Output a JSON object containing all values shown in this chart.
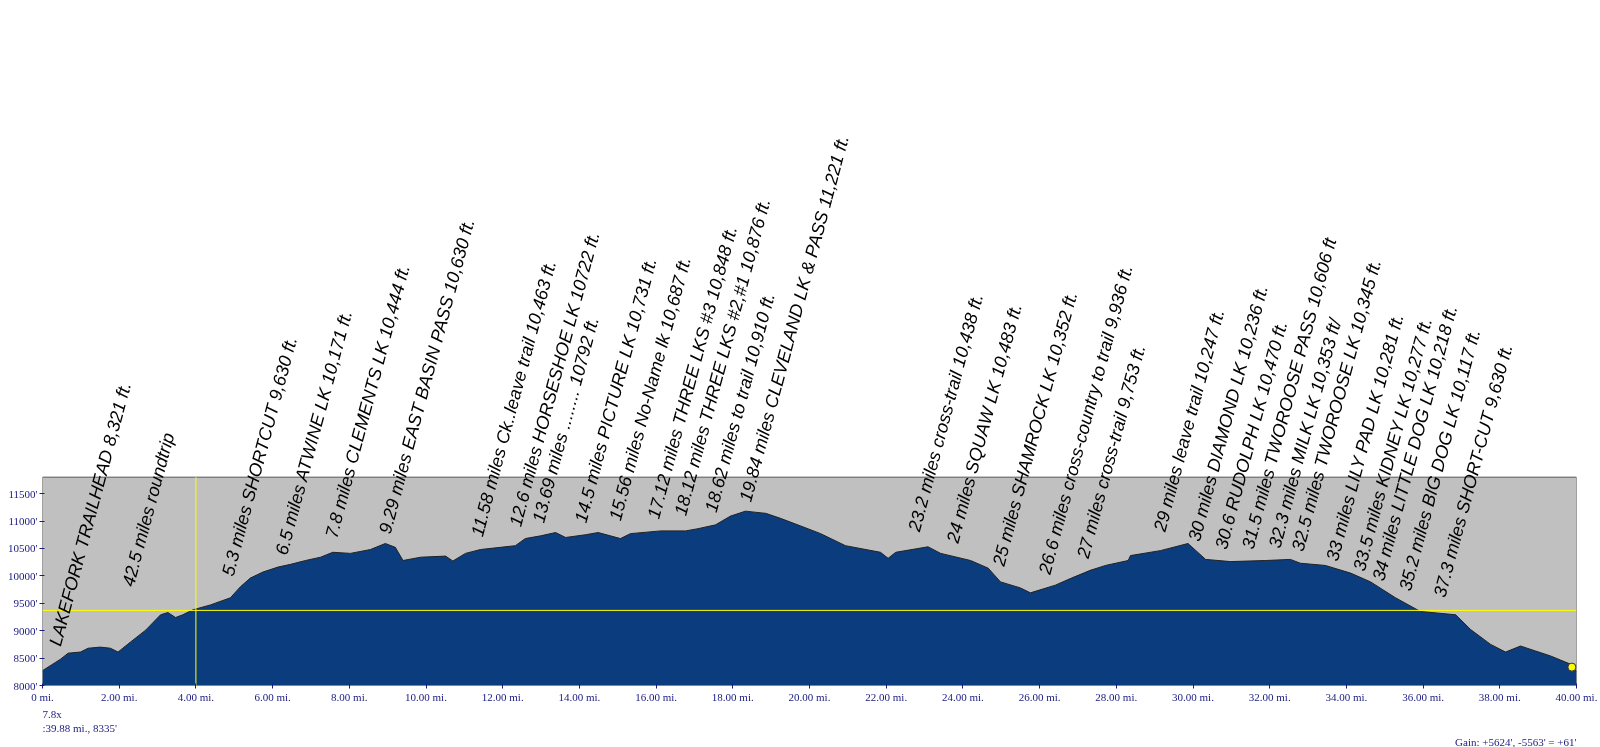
{
  "chart_data": {
    "type": "area",
    "xlim": [
      0,
      40
    ],
    "ylim": [
      8000,
      11800
    ],
    "xticks": [
      {
        "value": 0,
        "label": "0 mi."
      },
      {
        "value": 2,
        "label": "2.00 mi."
      },
      {
        "value": 4,
        "label": "4.00 mi."
      },
      {
        "value": 6,
        "label": "6.00 mi."
      },
      {
        "value": 8,
        "label": "8.00 mi."
      },
      {
        "value": 10,
        "label": "10.00 mi."
      },
      {
        "value": 12,
        "label": "12.00 mi."
      },
      {
        "value": 14,
        "label": "14.00 mi."
      },
      {
        "value": 16,
        "label": "16.00 mi."
      },
      {
        "value": 18,
        "label": "18.00 mi."
      },
      {
        "value": 20,
        "label": "20.00 mi."
      },
      {
        "value": 22,
        "label": "22.00 mi."
      },
      {
        "value": 24,
        "label": "24.00 mi."
      },
      {
        "value": 26,
        "label": "26.00 mi."
      },
      {
        "value": 28,
        "label": "28.00 mi."
      },
      {
        "value": 30,
        "label": "30.00 mi."
      },
      {
        "value": 32,
        "label": "32.00 mi."
      },
      {
        "value": 34,
        "label": "34.00 mi."
      },
      {
        "value": 36,
        "label": "36.00 mi."
      },
      {
        "value": 38,
        "label": "38.00 mi."
      },
      {
        "value": 40,
        "label": "40.00 mi."
      }
    ],
    "yticks": [
      {
        "value": 8000,
        "label": "8000'"
      },
      {
        "value": 8500,
        "label": "8500'"
      },
      {
        "value": 9000,
        "label": "9000'"
      },
      {
        "value": 9500,
        "label": "9500'"
      },
      {
        "value": 10000,
        "label": "10000'"
      },
      {
        "value": 10500,
        "label": "10500'"
      },
      {
        "value": 11000,
        "label": "11000'"
      },
      {
        "value": 11500,
        "label": "11500'"
      }
    ],
    "grid": false,
    "series": [
      {
        "color": "#0b3d7e",
        "x": [
          0,
          0.47,
          0.67,
          0.99,
          1.19,
          1.51,
          1.77,
          1.97,
          2.29,
          2.69,
          3.08,
          3.27,
          3.47,
          3.66,
          3.92,
          4.38,
          4.9,
          5.16,
          5.42,
          5.75,
          6.14,
          6.47,
          6.86,
          7.25,
          7.57,
          8.03,
          8.55,
          8.94,
          9.2,
          9.4,
          9.86,
          10.51,
          10.7,
          11.03,
          11.42,
          11.94,
          12.33,
          12.59,
          12.99,
          13.38,
          13.64,
          14.16,
          14.49,
          15.07,
          15.33,
          16.12,
          16.77,
          17.09,
          17.55,
          17.94,
          18.33,
          18.86,
          19.24,
          19.77,
          20.29,
          20.94,
          21.85,
          22.05,
          22.25,
          23.09,
          23.42,
          24.2,
          24.66,
          24.98,
          25.5,
          25.76,
          26.41,
          26.8,
          27.32,
          27.72,
          28.31,
          28.37,
          29.15,
          29.87,
          30.33,
          30.98,
          31.89,
          32.54,
          32.8,
          33.45,
          34.11,
          34.63,
          35.28,
          35.93,
          36.85,
          37.24,
          37.76,
          38.15,
          38.54,
          38.93,
          39.32,
          39.84,
          40.0
        ],
        "values": [
          8270,
          8480,
          8590,
          8610,
          8680,
          8700,
          8680,
          8610,
          8790,
          9010,
          9290,
          9330,
          9240,
          9290,
          9380,
          9470,
          9600,
          9800,
          9960,
          10070,
          10160,
          10210,
          10280,
          10340,
          10430,
          10410,
          10480,
          10590,
          10520,
          10280,
          10340,
          10360,
          10270,
          10410,
          10480,
          10520,
          10550,
          10680,
          10730,
          10790,
          10700,
          10750,
          10790,
          10680,
          10770,
          10820,
          10820,
          10860,
          10930,
          11090,
          11180,
          11140,
          11050,
          10910,
          10770,
          10550,
          10430,
          10320,
          10430,
          10530,
          10410,
          10280,
          10140,
          9890,
          9780,
          9690,
          9830,
          9950,
          10100,
          10190,
          10280,
          10370,
          10460,
          10590,
          10300,
          10260,
          10280,
          10300,
          10230,
          10190,
          10050,
          9890,
          9600,
          9350,
          9290,
          9020,
          8750,
          8610,
          8720,
          8630,
          8540,
          8390,
          8250
        ]
      },
      {
        "type": "scatter",
        "color": "#ffff00",
        "marker": "circle",
        "x": [
          39.88
        ],
        "values": [
          8335
        ]
      }
    ],
    "ref_lines": [
      {
        "axis": "x",
        "value": 4.0,
        "color": "#ffff00"
      },
      {
        "axis": "y",
        "value": 9370,
        "color": "#ffff00"
      }
    ],
    "annotations": [
      {
        "text": "LAKEFORK TRAILHEAD  8,321 ft.",
        "x": 0.5,
        "y": 8500
      },
      "42.5 miles roundtrip",
      {
        "text": "5.3 miles SHORTCUT  9,630 ft.",
        "x": 5.0,
        "y": 9780
      },
      {
        "text": "6.5 miles ATWINE LK  10,171 ft.",
        "x": 6.4,
        "y": 10160
      },
      {
        "text": "7.8 miles CLEMENTS LK  10,444 ft.",
        "x": 7.7,
        "y": 10470
      },
      {
        "text": "9.29 miles EAST BASIN PASS  10,630 ft.",
        "x": 9.1,
        "y": 10550
      },
      {
        "text": "11.58 miles Ck..leave trail  10,463 ft.",
        "x": 11.5,
        "y": 10500
      },
      {
        "text": "12.6 miles HORSESHOE LK  10722 ft.",
        "x": 12.5,
        "y": 10680
      },
      {
        "text": "13.69 miles  ........  10792 ft.",
        "x": 13.1,
        "y": 10750
      },
      {
        "text": "14.5 miles PICTURE LK 10,731 ft.",
        "x": 14.2,
        "y": 10750
      },
      {
        "text": "15.56 miles  No-Name lk  10,687 ft.",
        "x": 15.1,
        "y": 10790
      },
      {
        "text": "17.12 miles  THREE LKS #3  10,848 ft.",
        "x": 16.1,
        "y": 10820
      },
      {
        "text": "18.12 miles THREE LKS #2,#1 10,876 ft.",
        "x": 16.8,
        "y": 10880
      },
      {
        "text": "18.62 miles to trail  10,910 ft.",
        "x": 17.6,
        "y": 10940
      },
      {
        "text": "19.84 miles CLEVELAND LK & PASS  11,221 ft.",
        "x": 18.5,
        "y": 11130
      },
      {
        "text": "23.2 miles cross-trail  10,438 ft.",
        "x": 22.9,
        "y": 10590
      },
      {
        "text": "24 miles SQUAW LK 10,483 ft.",
        "x": 23.9,
        "y": 10380
      },
      {
        "text": "25 miles SHAMROCK LK  10,352 ft.",
        "x": 25.1,
        "y": 9960
      },
      {
        "text": "26.6 miles  cross-country to trail  9,936 ft.",
        "x": 26.3,
        "y": 9810
      },
      {
        "text": "27 miles  cross-trail  9,753 ft.",
        "x": 27.3,
        "y": 10100
      },
      {
        "text": "29 miles  leave trail  10,247 ft.",
        "x": 29.3,
        "y": 10590
      },
      {
        "text": "30 miles DIAMOND LK  10,236 ft.",
        "x": 30.2,
        "y": 10410
      },
      {
        "text": "30.6 RUDOLPH LK  10,470 ft.",
        "x": 30.9,
        "y": 10265
      },
      {
        "text": "31.5 miles TWOROOSE PASS  10,606 ft",
        "x": 31.6,
        "y": 10270
      },
      {
        "text": "32.3 miles  MILK LK  10,353 ft/",
        "x": 32.3,
        "y": 10290
      },
      {
        "text": "32.5 miles TWOROOSE LK  10,345 ft.",
        "x": 32.9,
        "y": 10230
      },
      {
        "text": "33 miles LILY PAD LK  10,281 ft.",
        "x": 33.8,
        "y": 10050
      },
      {
        "text": "33.5 miles KIDNEY LK  10,277 ft.",
        "x": 34.5,
        "y": 9870
      },
      {
        "text": "34 miles LITTLE DOG LK  10,218 ft.",
        "x": 35.0,
        "y": 9690
      },
      {
        "text": "35.2 miles BIG DOG LK  10,117 ft.",
        "x": 35.7,
        "y": 9510
      },
      {
        "text": "37.3 miles   SHORT-CUT 9,630 ft.",
        "x": 36.6,
        "y": 9390
      },
      "7.8x",
      ":39.88 mi., 8335'",
      "Gain: +5624', -5563' = +61'"
    ]
  }
}
